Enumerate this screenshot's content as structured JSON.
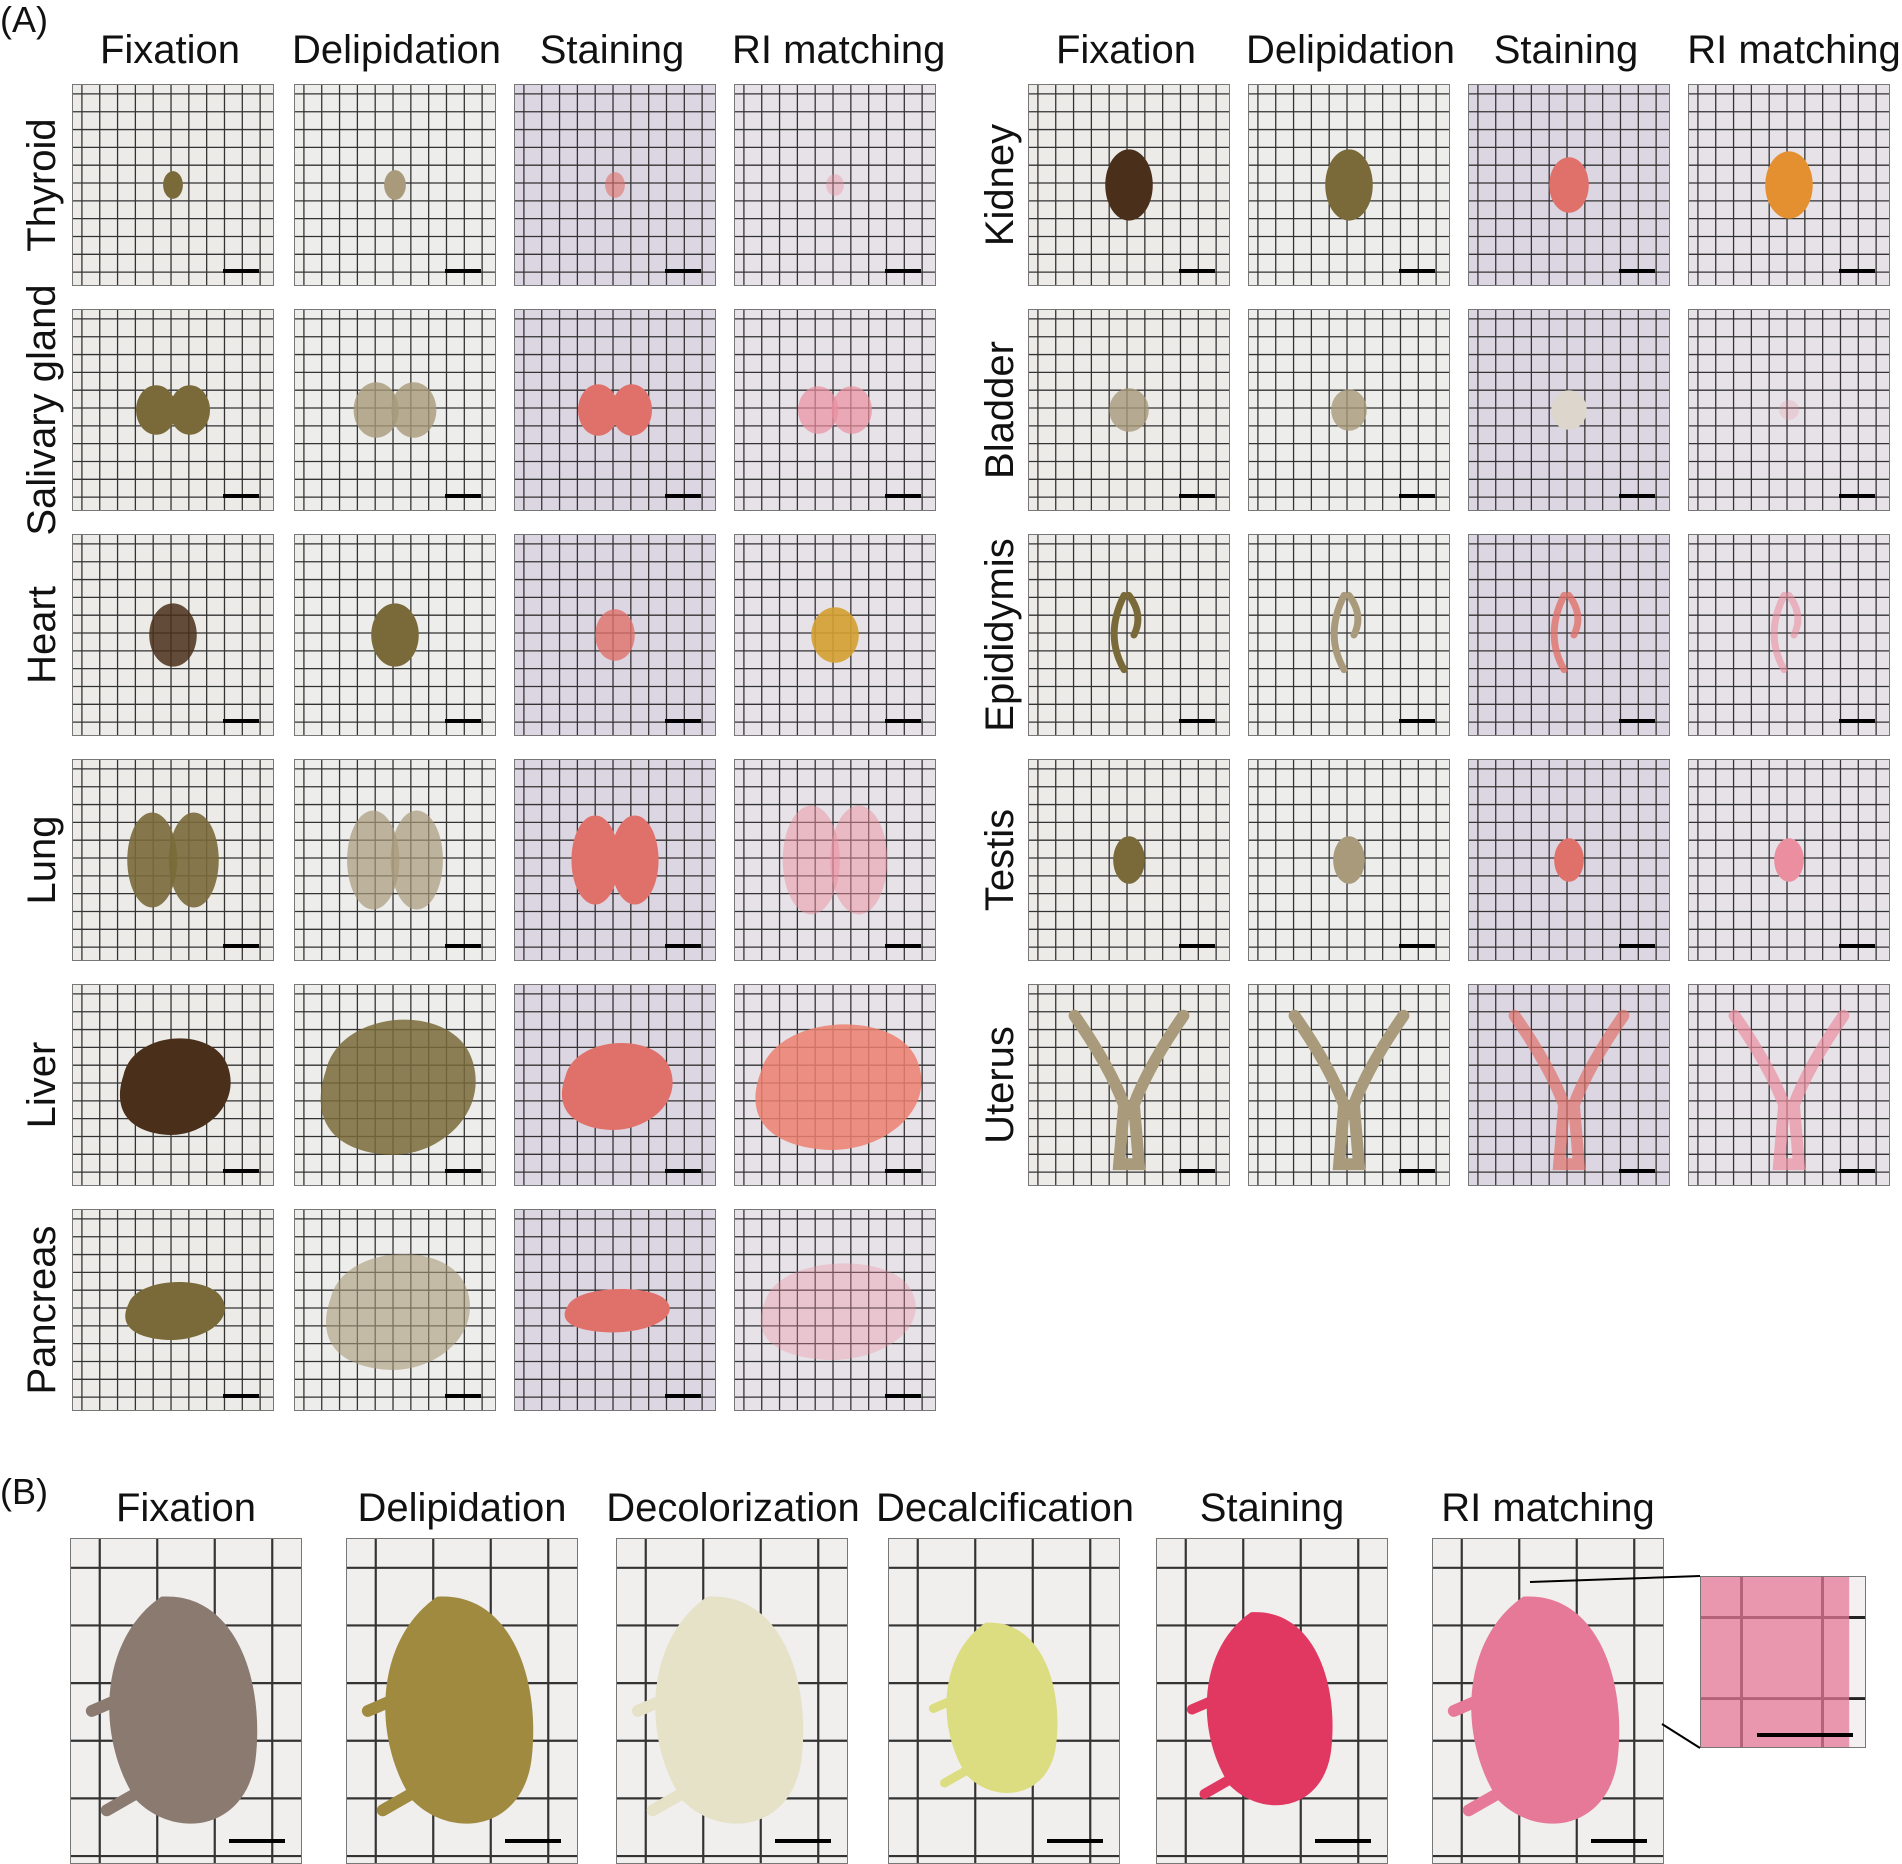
{
  "panel_a": {
    "label": "(A)",
    "left_group": {
      "columns": [
        "Fixation",
        "Delipidation",
        "Staining",
        "RI matching"
      ],
      "rows": [
        "Thyroid",
        "Salivary gland",
        "Heart",
        "Lung",
        "Liver",
        "Pancreas"
      ]
    },
    "right_group": {
      "columns": [
        "Fixation",
        "Delipidation",
        "Staining",
        "RI matching"
      ],
      "rows": [
        "Kidney",
        "Bladder",
        "Epididymis",
        "Testis",
        "Uterus"
      ]
    }
  },
  "panel_b": {
    "label": "(B)",
    "columns": [
      "Fixation",
      "Delipidation",
      "Decolorization",
      "Decalcification",
      "Staining",
      "RI matching"
    ]
  },
  "colors": {
    "fixation": "#7a6a3a",
    "fixation_dark": "#4a2f1a",
    "delipidation": "#a89a7a",
    "staining": "#e0706a",
    "ri_matching": "#eb8fa0",
    "kidney_ri": "#e59030",
    "heart_ri": "#d4a030",
    "liver_ri": "#ec8070",
    "pup_fixation": "#8a7a70",
    "pup_delipidation": "#a08a40",
    "pup_decolorization": "#e6e2c8",
    "pup_decalcification": "#dcdc80",
    "pup_staining": "#e03860",
    "pup_ri": "#e67898"
  }
}
